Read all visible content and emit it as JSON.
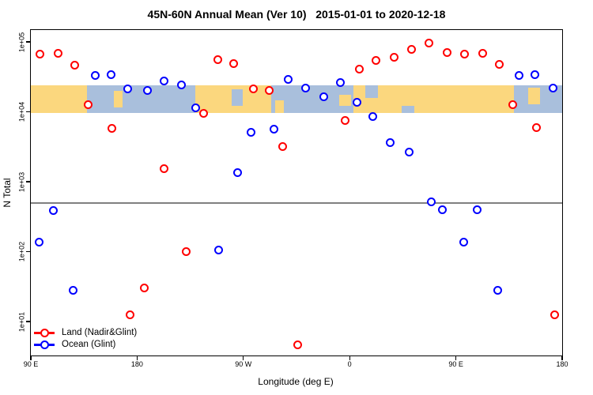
{
  "chart": {
    "title": "45N-60N Annual Mean (Ver 10)   2015-01-01 to 2020-12-18",
    "xlabel": "Longitude (deg E)",
    "ylabel": "N Total"
  },
  "chart_data": {
    "type": "scatter",
    "title": "45N-60N Annual Mean (Ver 10)   2015-01-01 to 2020-12-18",
    "xlabel": "Longitude (deg E)",
    "ylabel": "N Total",
    "grid": false,
    "legend_position": "bottom-left",
    "x_axis": {
      "start_deg": 90,
      "end_deg": 540,
      "ticks": [
        {
          "deg": 90,
          "label": "90 E"
        },
        {
          "deg": 180,
          "label": "180"
        },
        {
          "deg": 270,
          "label": "90 W"
        },
        {
          "deg": 360,
          "label": "0"
        },
        {
          "deg": 450,
          "label": "90 E"
        },
        {
          "deg": 540,
          "label": "180"
        }
      ]
    },
    "y_axis": {
      "scale": "log10",
      "range": [
        3,
        150000
      ],
      "ticks": [
        {
          "value": 100000,
          "label": "1e+05"
        },
        {
          "value": 10000,
          "label": "1e+04"
        },
        {
          "value": 1000,
          "label": "1e+03"
        },
        {
          "value": 100,
          "label": "1e+02"
        },
        {
          "value": 10,
          "label": "1e+01"
        }
      ]
    },
    "reference_line": {
      "value": 500,
      "color": "#808080"
    },
    "map_band": {
      "value_top": 24000,
      "value_bottom": 9600,
      "land_color": "#FBD77E",
      "ocean_color": "#A9BFDC",
      "ocean_segments": [
        {
          "from": 137.5,
          "to": 229.3,
          "top": 0,
          "bottom": 1
        },
        {
          "from": 260.0,
          "to": 269.5,
          "top": 0.15,
          "bottom": 0.75
        },
        {
          "from": 293.5,
          "to": 363.3,
          "top": 0,
          "bottom": 1
        },
        {
          "from": 373.0,
          "to": 384.0,
          "top": 0,
          "bottom": 0.45
        },
        {
          "from": 404.0,
          "to": 415.0,
          "top": 0.75,
          "bottom": 1
        },
        {
          "from": 499.0,
          "to": 540.0,
          "top": 0,
          "bottom": 1
        }
      ],
      "land_patches": [
        {
          "from": 160.0,
          "to": 168.0,
          "top": 0.2,
          "bottom": 0.8
        },
        {
          "from": 297.0,
          "to": 304.0,
          "top": 0.55,
          "bottom": 1
        },
        {
          "from": 351.0,
          "to": 361.0,
          "top": 0.35,
          "bottom": 0.75
        },
        {
          "from": 511.0,
          "to": 521.0,
          "top": 0.1,
          "bottom": 0.7
        }
      ]
    },
    "series": [
      {
        "name": "Land (Nadir&Glint)",
        "color": "#FF0000",
        "points": [
          {
            "lon": 97.8,
            "value": 67000
          },
          {
            "lon": 113.0,
            "value": 69000
          },
          {
            "lon": 127.0,
            "value": 46000
          },
          {
            "lon": 138.7,
            "value": 12800
          },
          {
            "lon": 158.8,
            "value": 5800
          },
          {
            "lon": 173.9,
            "value": 12.6
          },
          {
            "lon": 186.4,
            "value": 30
          },
          {
            "lon": 203.0,
            "value": 1540
          },
          {
            "lon": 221.4,
            "value": 101
          },
          {
            "lon": 236.4,
            "value": 9500
          },
          {
            "lon": 248.3,
            "value": 55000
          },
          {
            "lon": 261.9,
            "value": 49500
          },
          {
            "lon": 278.2,
            "value": 21400
          },
          {
            "lon": 291.6,
            "value": 20300
          },
          {
            "lon": 303.2,
            "value": 3200
          },
          {
            "lon": 316.2,
            "value": 4.7
          },
          {
            "lon": 356.5,
            "value": 7600
          },
          {
            "lon": 368.4,
            "value": 41000
          },
          {
            "lon": 382.0,
            "value": 54500
          },
          {
            "lon": 397.8,
            "value": 60000
          },
          {
            "lon": 412.6,
            "value": 78000
          },
          {
            "lon": 427.1,
            "value": 95000
          },
          {
            "lon": 442.3,
            "value": 71000
          },
          {
            "lon": 457.5,
            "value": 67000
          },
          {
            "lon": 472.4,
            "value": 68000
          },
          {
            "lon": 486.5,
            "value": 47400
          },
          {
            "lon": 498.1,
            "value": 12700
          },
          {
            "lon": 518.2,
            "value": 5900
          },
          {
            "lon": 533.8,
            "value": 12.6
          }
        ]
      },
      {
        "name": "Ocean (Glint)",
        "color": "#0000FF",
        "points": [
          {
            "lon": 97.2,
            "value": 136
          },
          {
            "lon": 108.8,
            "value": 385
          },
          {
            "lon": 125.7,
            "value": 27.8
          },
          {
            "lon": 144.7,
            "value": 33000
          },
          {
            "lon": 158.1,
            "value": 34000
          },
          {
            "lon": 171.7,
            "value": 21500
          },
          {
            "lon": 188.9,
            "value": 20100
          },
          {
            "lon": 202.5,
            "value": 27900
          },
          {
            "lon": 217.9,
            "value": 24500
          },
          {
            "lon": 229.7,
            "value": 11300
          },
          {
            "lon": 248.9,
            "value": 104
          },
          {
            "lon": 265.0,
            "value": 1340
          },
          {
            "lon": 276.4,
            "value": 5150
          },
          {
            "lon": 295.8,
            "value": 5600
          },
          {
            "lon": 308.3,
            "value": 29200
          },
          {
            "lon": 322.4,
            "value": 21900
          },
          {
            "lon": 337.8,
            "value": 16200
          },
          {
            "lon": 352.0,
            "value": 26100
          },
          {
            "lon": 366.1,
            "value": 13600
          },
          {
            "lon": 379.5,
            "value": 8450
          },
          {
            "lon": 394.5,
            "value": 3670
          },
          {
            "lon": 410.1,
            "value": 2670
          },
          {
            "lon": 428.9,
            "value": 518
          },
          {
            "lon": 438.7,
            "value": 392
          },
          {
            "lon": 456.7,
            "value": 137
          },
          {
            "lon": 468.3,
            "value": 392
          },
          {
            "lon": 485.1,
            "value": 27.8
          },
          {
            "lon": 503.7,
            "value": 33000
          },
          {
            "lon": 517.1,
            "value": 34000
          },
          {
            "lon": 532.2,
            "value": 21900
          }
        ]
      }
    ]
  }
}
